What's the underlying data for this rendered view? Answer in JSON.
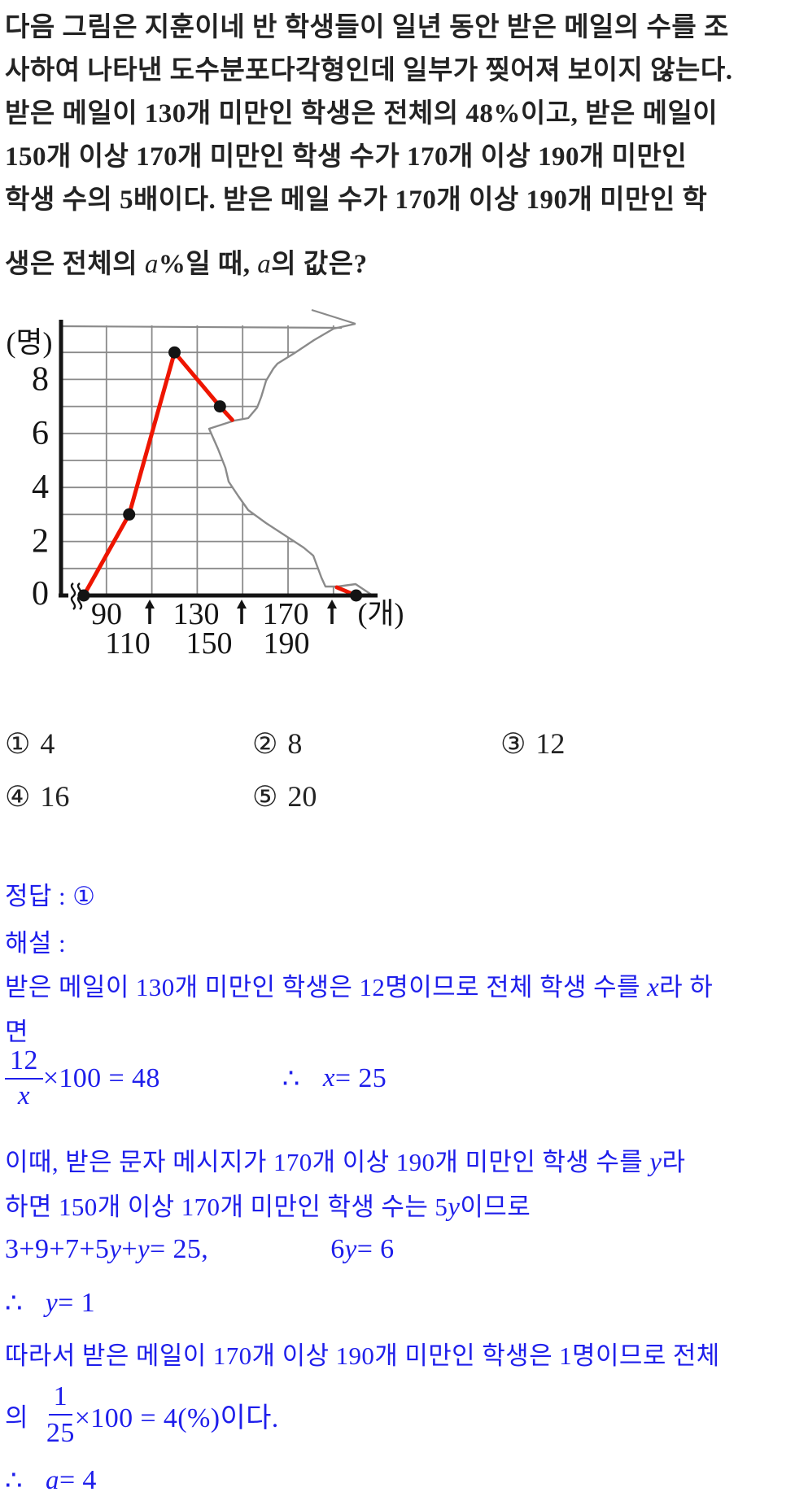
{
  "colors": {
    "solution_blue": "#1e1eeb",
    "polygon_red": "#ee1500",
    "tear_gray": "#8a8a8a",
    "axis_black": "#141414"
  },
  "problem": {
    "lines": [
      "다음 그림은 지훈이네 반 학생들이 일년 동안 받은 메일의 수를 조",
      "사하여 나타낸 도수분포다각형인데 일부가 찢어져 보이지 않는다.",
      "받은 메일이 130개 미만인 학생은 전체의 48%이고, 받은 메일이",
      "150개 이상 170개 미만인 학생 수가 170개 이상 190개 미만인",
      "학생 수의 5배이다. 받은 메일 수가 170개 이상 190개 미만인 학"
    ],
    "line6": {
      "a": "생은 전체의 ",
      "b": "a",
      "c": "%일 때, ",
      "d": "a",
      "e": "의 값은?"
    }
  },
  "chart_data": {
    "type": "line",
    "title": "받은 메일 수 도수분포다각형 (일부가 찢어짐)",
    "xlabel": "(개)",
    "ylabel": "(명)",
    "x_midpoints": [
      80,
      100,
      120,
      140,
      160,
      180,
      200
    ],
    "frequencies": [
      0,
      3,
      9,
      7,
      5,
      1,
      0
    ],
    "torn_hidden_x": [
      160,
      180
    ],
    "class_width": 20,
    "xticks_row1": [
      "90",
      "130",
      "170"
    ],
    "xticks_row2": [
      "110",
      "150",
      "190"
    ],
    "yticks": [
      "0",
      "2",
      "4",
      "6",
      "8"
    ],
    "ylim": [
      0,
      10
    ],
    "xgrid": [
      90,
      110,
      130,
      150,
      170,
      190,
      210
    ],
    "grid": true,
    "visible_segments": [
      [
        [
          80,
          0
        ],
        [
          100,
          3
        ],
        [
          120,
          9
        ],
        [
          140,
          7
        ],
        [
          145.4,
          6.5
        ]
      ],
      [
        [
          191.5,
          0.3
        ],
        [
          200,
          0
        ]
      ]
    ],
    "dots": [
      [
        80,
        0
      ],
      [
        100,
        3
      ],
      [
        120,
        9
      ],
      [
        140,
        7
      ],
      [
        200,
        0
      ]
    ]
  },
  "choices": [
    {
      "num": "①",
      "value": "4"
    },
    {
      "num": "②",
      "value": "8"
    },
    {
      "num": "③",
      "value": "12"
    },
    {
      "num": "④",
      "value": "16"
    },
    {
      "num": "⑤",
      "value": "20"
    }
  ],
  "solution": {
    "answer_line": "정답 : ①",
    "explain_label": "해설 :",
    "l1a": "받은 메일이 130개 미만인 학생은 12명이므로 전체 학생 수를 ",
    "l1b": "x",
    "l1c": "라 하",
    "l2": "면",
    "eq1": {
      "num": "12",
      "den": "x",
      "mid": "×100 = 48",
      "tf": "∴",
      "var": "x",
      "rest": " = 25"
    },
    "l3a": "이때, 받은 문자 메시지가 170개 이상 190개 미만인 학생 수를 ",
    "l3b": "y",
    "l3c": "라",
    "l4a": "하면 150개 이상 170개 미만인 학생 수는 5",
    "l4b": "y",
    "l4c": "이므로",
    "eq2": {
      "a": "3+9+7+5",
      "b": "y",
      "c": "+",
      "d": "y",
      "e": " = 25,",
      "f": "6",
      "g": "y",
      "h": " = 6"
    },
    "l5a": "∴",
    "l5b": "y",
    "l5c": " = 1",
    "l6": "따라서 받은 메일이 170개 이상 190개 미만인 학생은 1명이므로 전체",
    "eq3": {
      "pre": "의 ",
      "num": "1",
      "den": "25",
      "post": "×100 = 4(%)이다."
    },
    "l7a": "∴",
    "l7b": "a",
    "l7c": " = 4"
  }
}
